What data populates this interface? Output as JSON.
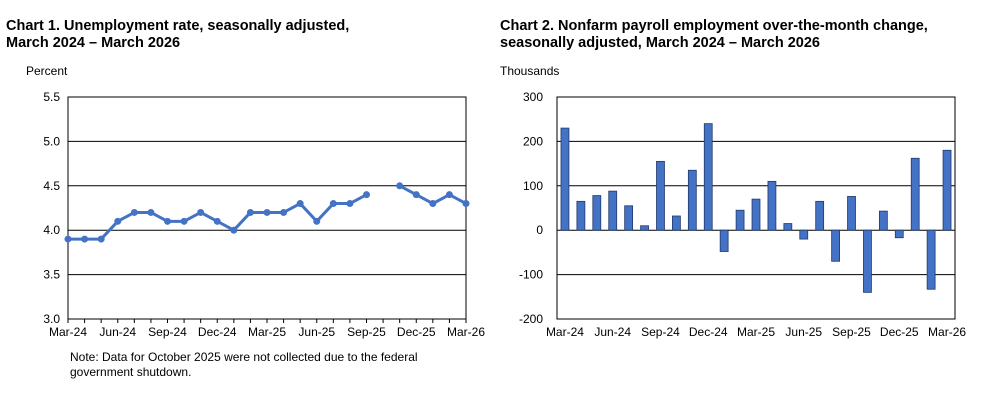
{
  "chart_data": [
    {
      "type": "line",
      "title_line1": "Chart 1. Unemployment rate, seasonally adjusted,",
      "title_line2": "March 2024 – March 2026",
      "ylabel": "Percent",
      "xlabel": "",
      "ylim": [
        3.0,
        5.5
      ],
      "yticks": [
        "5.5",
        "5.0",
        "4.5",
        "4.0",
        "3.5",
        "3.0"
      ],
      "ytick_values": [
        5.5,
        5.0,
        4.5,
        4.0,
        3.5,
        3.0
      ],
      "grid": true,
      "line_color": "#4472C4",
      "x": [
        "Mar-24",
        "Apr-24",
        "May-24",
        "Jun-24",
        "Jul-24",
        "Aug-24",
        "Sep-24",
        "Oct-24",
        "Nov-24",
        "Dec-24",
        "Jan-25",
        "Feb-25",
        "Mar-25",
        "Apr-25",
        "May-25",
        "Jun-25",
        "Jul-25",
        "Aug-25",
        "Sep-25",
        "Oct-25",
        "Nov-25",
        "Dec-25",
        "Jan-26",
        "Feb-26",
        "Mar-26"
      ],
      "values": [
        3.9,
        3.9,
        3.9,
        4.1,
        4.2,
        4.2,
        4.1,
        4.1,
        4.2,
        4.1,
        4.0,
        4.2,
        4.2,
        4.2,
        4.3,
        4.1,
        4.3,
        4.3,
        4.4,
        null,
        4.5,
        4.4,
        4.3,
        4.4,
        4.3
      ],
      "xtick_labels": [
        {
          "index": 0,
          "label": "Mar-24"
        },
        {
          "index": 3,
          "label": "Jun-24"
        },
        {
          "index": 6,
          "label": "Sep-24"
        },
        {
          "index": 9,
          "label": "Dec-24"
        },
        {
          "index": 12,
          "label": "Mar-25"
        },
        {
          "index": 15,
          "label": "Jun-25"
        },
        {
          "index": 18,
          "label": "Sep-25"
        },
        {
          "index": 21,
          "label": "Dec-25"
        },
        {
          "index": 24,
          "label": "Mar-26"
        }
      ],
      "note_line1": "Note: Data for October 2025 were not collected due to the federal",
      "note_line2": "government shutdown."
    },
    {
      "type": "bar",
      "title_line1": "Chart 2. Nonfarm payroll employment over-the-month change,",
      "title_line2": "seasonally adjusted, March 2024 – March 2026",
      "ylabel": "Thousands",
      "xlabel": "",
      "ylim": [
        -200,
        300
      ],
      "yticks": [
        "300",
        "200",
        "100",
        "0",
        "-100",
        "-200"
      ],
      "ytick_values": [
        300,
        200,
        100,
        0,
        -100,
        -200
      ],
      "grid": true,
      "bar_color": "#4472C4",
      "x": [
        "Mar-24",
        "Apr-24",
        "May-24",
        "Jun-24",
        "Jul-24",
        "Aug-24",
        "Sep-24",
        "Oct-24",
        "Nov-24",
        "Dec-24",
        "Jan-25",
        "Feb-25",
        "Mar-25",
        "Apr-25",
        "May-25",
        "Jun-25",
        "Jul-25",
        "Aug-25",
        "Sep-25",
        "Oct-25",
        "Nov-25",
        "Dec-25",
        "Jan-26",
        "Feb-26",
        "Mar-26"
      ],
      "values": [
        230,
        65,
        78,
        88,
        55,
        10,
        155,
        32,
        135,
        240,
        -48,
        45,
        70,
        110,
        15,
        -20,
        65,
        -70,
        76,
        -140,
        43,
        -17,
        162,
        -133,
        180
      ],
      "xtick_labels": [
        {
          "index": 0,
          "label": "Mar-24"
        },
        {
          "index": 3,
          "label": "Jun-24"
        },
        {
          "index": 6,
          "label": "Sep-24"
        },
        {
          "index": 9,
          "label": "Dec-24"
        },
        {
          "index": 12,
          "label": "Mar-25"
        },
        {
          "index": 15,
          "label": "Jun-25"
        },
        {
          "index": 18,
          "label": "Sep-25"
        },
        {
          "index": 21,
          "label": "Dec-25"
        },
        {
          "index": 24,
          "label": "Mar-26"
        }
      ]
    }
  ]
}
